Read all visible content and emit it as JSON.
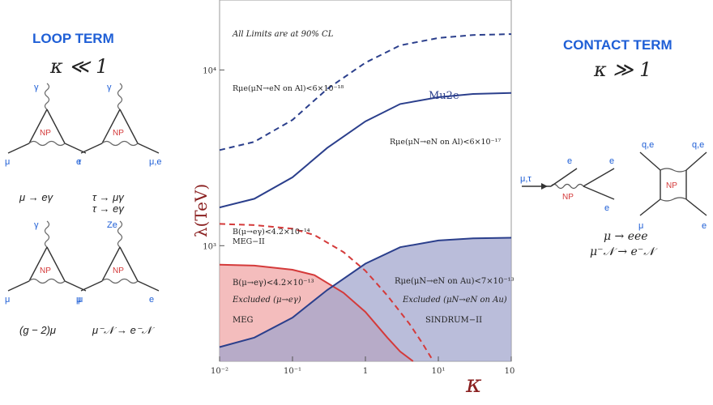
{
  "left": {
    "title": "LOOP TERM",
    "kappa": "κ ≪ 1",
    "diagrams": [
      {
        "top": "γ",
        "left": "μ",
        "right": "e",
        "center": "NP",
        "caption": "μ → eγ"
      },
      {
        "top": "γ",
        "left": "τ",
        "right": "μ,e",
        "center": "NP",
        "caption": "τ → μγ\nτ → eγ"
      },
      {
        "top": "γ",
        "left": "μ",
        "right": "μ",
        "center": "NP",
        "caption": "(g − 2)μ"
      },
      {
        "top": "Ze",
        "left": "μ",
        "right": "e",
        "center": "NP",
        "caption": "μ⁻𝒩 → e⁻𝒩"
      }
    ]
  },
  "right": {
    "title": "CONTACT TERM",
    "kappa": "κ ≫ 1",
    "diag1": {
      "in": "μ,τ",
      "out1": "e",
      "out2": "e",
      "out3": "e",
      "center": "NP"
    },
    "diag2": {
      "tl": "q,e",
      "tr": "q,e",
      "bl": "μ",
      "br": "e",
      "center": "NP"
    },
    "captions": [
      "μ → eee",
      "μ⁻𝒩 → e⁻𝒩"
    ]
  },
  "chart_data": {
    "type": "line",
    "note": "All Limits are at 90% CL",
    "xlabel": "κ",
    "ylabel": "λ(TeV)",
    "xscale": "log",
    "yscale": "log",
    "xlim": [
      0.01,
      100
    ],
    "ylim": [
      220,
      25000
    ],
    "xticks": [
      "10⁻²",
      "10⁻¹",
      "1",
      "10¹",
      "10²"
    ],
    "yticks": [
      {
        "value": 1000,
        "label": "10³"
      },
      {
        "value": 10000,
        "label": "10⁴"
      }
    ],
    "series": [
      {
        "name": "Mu2e",
        "style": "dashed",
        "color": "#2b3f8c",
        "label": "Rμe(μN→eN on Al)<6×10⁻¹⁸",
        "x": [
          0.01,
          0.03,
          0.1,
          0.3,
          1,
          3,
          10,
          30,
          100
        ],
        "y": [
          3500,
          3900,
          5200,
          7800,
          11000,
          13800,
          15200,
          15800,
          16000
        ]
      },
      {
        "name": "",
        "style": "solid",
        "color": "#2b3f8c",
        "label": "Rμe(μN→eN on Al)<6×10⁻¹⁷",
        "x": [
          0.01,
          0.03,
          0.1,
          0.3,
          1,
          3,
          10,
          30,
          100
        ],
        "y": [
          1650,
          1850,
          2450,
          3600,
          5100,
          6400,
          7000,
          7300,
          7400
        ]
      },
      {
        "name": "MEG−II",
        "style": "dashed",
        "color": "#d43a3a",
        "label": "B(μ→eγ)<4.2×10⁻¹⁴",
        "x": [
          0.01,
          0.03,
          0.1,
          0.2,
          0.5,
          1,
          2,
          4,
          6,
          8
        ],
        "y": [
          1330,
          1310,
          1250,
          1150,
          920,
          720,
          520,
          360,
          280,
          230
        ]
      },
      {
        "name": "MEG",
        "style": "solid",
        "color": "#d43a3a",
        "fill": "#f0a3a3",
        "label": "B(μ→eγ)<4.2×10⁻¹³",
        "excluded": "Excluded (μ→eγ)",
        "x": [
          0.01,
          0.03,
          0.1,
          0.2,
          0.5,
          1,
          2,
          3,
          4.5
        ],
        "y": [
          780,
          770,
          730,
          680,
          540,
          420,
          300,
          250,
          220
        ]
      },
      {
        "name": "SINDRUM−II",
        "style": "solid",
        "color": "#2b3f8c",
        "fill": "#9fa3cc",
        "label": "Rμe(μN→eN on Au)<7×10⁻¹³",
        "excluded": "Excluded (μN→eN on Au)",
        "x": [
          0.01,
          0.03,
          0.1,
          0.3,
          1,
          3,
          10,
          30,
          100
        ],
        "y": [
          265,
          300,
          390,
          560,
          790,
          980,
          1070,
          1100,
          1110
        ]
      }
    ]
  }
}
